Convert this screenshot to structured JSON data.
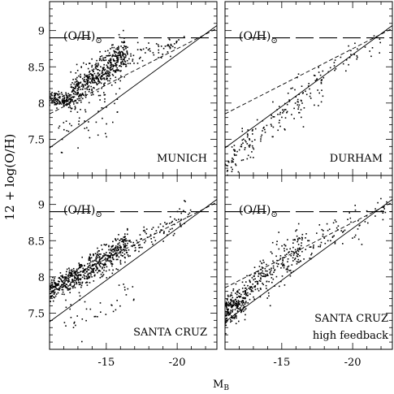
{
  "figure": {
    "xlabel_main": "M",
    "xlabel_sub": "B",
    "ylabel": "12 + log(O/H)",
    "solar_label_main": "(O/H)",
    "solar_label_sub": "⊙",
    "solar_value": 8.9
  },
  "chart_data": [
    {
      "type": "scatter",
      "panel": "top-left",
      "label": "MUNICH",
      "xlim": [
        -11,
        -22.8
      ],
      "ylim": [
        7,
        9.4
      ],
      "x_ticks": [
        -15,
        -20
      ],
      "y_ticks": [
        7.5,
        8,
        8.5,
        9
      ],
      "x_tick_labels": [],
      "y_tick_labels": [
        "7.5",
        "8",
        "8.5",
        "9"
      ],
      "solar_line": 8.9,
      "fit_solid": {
        "x": [
          -11,
          -22.8
        ],
        "y": [
          7.38,
          9.07
        ]
      },
      "fit_dashed": {
        "x": [
          -11,
          -22.8
        ],
        "y": [
          7.85,
          9.03
        ]
      },
      "clusters": [
        {
          "x_range": [
            -11,
            -12.5
          ],
          "y_mean": 8.05,
          "y_sd": 0.05,
          "n": 140
        },
        {
          "x_range": [
            -12.5,
            -16.5
          ],
          "y_start": 8.1,
          "y_end": 8.7,
          "y_sd": 0.12,
          "n": 520
        },
        {
          "x_range": [
            -16.5,
            -20.5
          ],
          "y_start": 8.6,
          "y_end": 8.85,
          "y_sd": 0.06,
          "n": 60
        },
        {
          "x_range": [
            -11.5,
            -16
          ],
          "y_start": 7.6,
          "y_end": 8.0,
          "y_sd": 0.18,
          "n": 50
        }
      ]
    },
    {
      "type": "scatter",
      "panel": "top-right",
      "label": "DURHAM",
      "xlim": [
        -11,
        -22.8
      ],
      "ylim": [
        7,
        9.4
      ],
      "x_ticks": [
        -15,
        -20
      ],
      "y_ticks": [
        7.5,
        8,
        8.5,
        9
      ],
      "x_tick_labels": [],
      "y_tick_labels": [],
      "solar_line": 8.9,
      "fit_solid": {
        "x": [
          -11,
          -22.8
        ],
        "y": [
          7.38,
          9.07
        ]
      },
      "fit_dashed": {
        "x": [
          -11,
          -22.8
        ],
        "y": [
          7.85,
          9.03
        ]
      },
      "clusters": [
        {
          "x_range": [
            -11,
            -13
          ],
          "y_start": 7.1,
          "y_end": 7.5,
          "y_sd": 0.12,
          "n": 70
        },
        {
          "x_range": [
            -13,
            -18
          ],
          "y_start": 7.5,
          "y_end": 8.35,
          "y_sd": 0.15,
          "n": 110
        },
        {
          "x_range": [
            -18,
            -22.5
          ],
          "y_start": 8.4,
          "y_end": 8.98,
          "y_sd": 0.08,
          "n": 30
        }
      ]
    },
    {
      "type": "scatter",
      "panel": "bottom-left",
      "label": "SANTA CRUZ",
      "xlim": [
        -11,
        -22.8
      ],
      "ylim": [
        7,
        9.4
      ],
      "x_ticks": [
        -15,
        -20
      ],
      "y_ticks": [
        7.5,
        8,
        8.5,
        9
      ],
      "x_tick_labels": [
        "-15",
        "-20"
      ],
      "y_tick_labels": [
        "7.5",
        "8",
        "8.5",
        "9"
      ],
      "solar_line": 8.9,
      "fit_solid": {
        "x": [
          -11,
          -22.8
        ],
        "y": [
          7.38,
          9.07
        ]
      },
      "fit_dashed": {
        "x": [
          -11,
          -22.8
        ],
        "y": [
          7.85,
          9.03
        ]
      },
      "clusters": [
        {
          "x_range": [
            -11,
            -13
          ],
          "y_start": 7.8,
          "y_end": 8.0,
          "y_sd": 0.08,
          "n": 220
        },
        {
          "x_range": [
            -13,
            -16.5
          ],
          "y_start": 8.0,
          "y_end": 8.45,
          "y_sd": 0.1,
          "n": 380
        },
        {
          "x_range": [
            -16.5,
            -21
          ],
          "y_start": 8.4,
          "y_end": 8.9,
          "y_sd": 0.08,
          "n": 90
        },
        {
          "x_range": [
            -12,
            -17
          ],
          "y_start": 7.4,
          "y_end": 7.7,
          "y_sd": 0.15,
          "n": 40
        }
      ]
    },
    {
      "type": "scatter",
      "panel": "bottom-right",
      "label": "SANTA CRUZ",
      "label2": "high feedback",
      "xlim": [
        -11,
        -22.8
      ],
      "ylim": [
        7,
        9.4
      ],
      "x_ticks": [
        -15,
        -20
      ],
      "y_ticks": [
        7.5,
        8,
        8.5,
        9
      ],
      "x_tick_labels": [
        "-15",
        "-20"
      ],
      "y_tick_labels": [],
      "solar_line": 8.9,
      "fit_solid": {
        "x": [
          -11,
          -22.8
        ],
        "y": [
          7.38,
          9.07
        ]
      },
      "fit_dashed": {
        "x": [
          -11,
          -22.8
        ],
        "y": [
          7.85,
          9.03
        ]
      },
      "clusters": [
        {
          "x_range": [
            -11,
            -12.5
          ],
          "y_start": 7.5,
          "y_end": 7.7,
          "y_sd": 0.12,
          "n": 220
        },
        {
          "x_range": [
            -12.5,
            -16.5
          ],
          "y_start": 7.8,
          "y_end": 8.4,
          "y_sd": 0.15,
          "n": 230
        },
        {
          "x_range": [
            -16.5,
            -22.5
          ],
          "y_start": 8.4,
          "y_end": 8.95,
          "y_sd": 0.1,
          "n": 80
        }
      ]
    }
  ]
}
